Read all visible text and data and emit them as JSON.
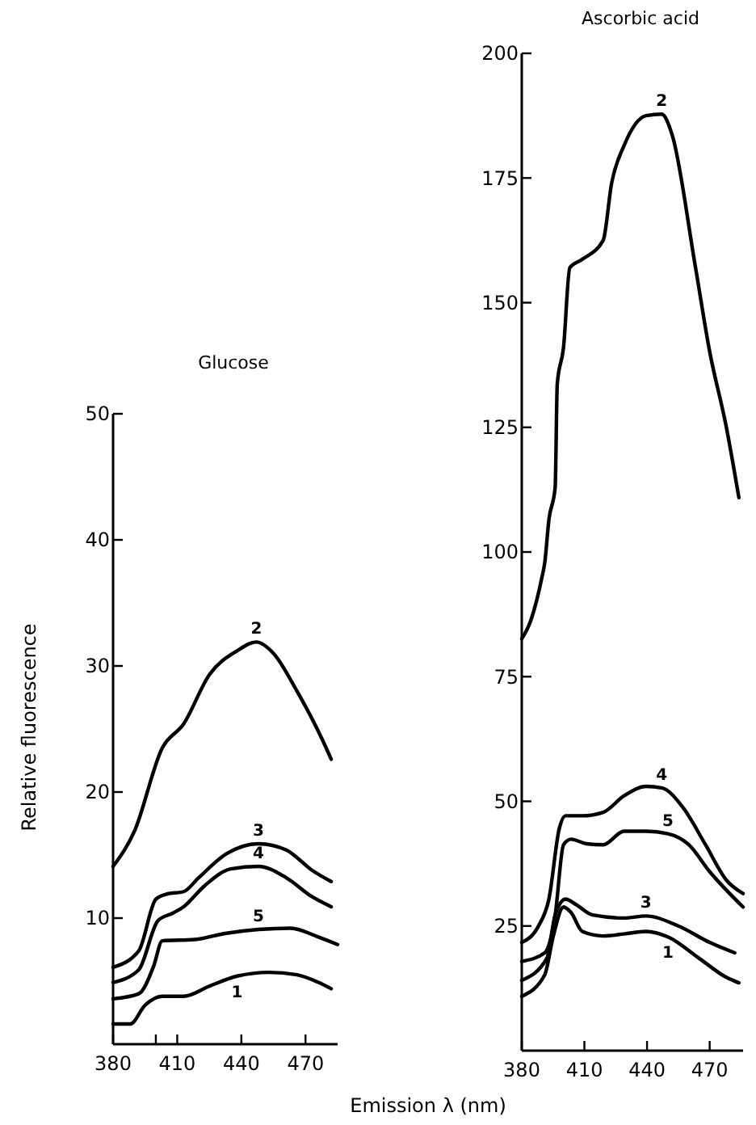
{
  "chart_data": [
    {
      "type": "line",
      "title": "Glucose",
      "ylabel": "Relative fluorescence",
      "xlim": [
        380,
        485
      ],
      "xticks": [
        380,
        {
          "value": 400,
          "label": null
        },
        410,
        440,
        470
      ],
      "ylim": [
        0,
        50
      ],
      "yticks": [
        10,
        20,
        30,
        40,
        50
      ],
      "grid": false,
      "line_style": "solid",
      "series": [
        {
          "name": "2",
          "color": "#000000",
          "x": [
            380,
            390,
            403,
            413,
            425,
            438,
            447,
            455,
            466,
            478,
            482
          ],
          "values": [
            14.1,
            16.9,
            23.5,
            25.4,
            29.3,
            31.2,
            31.9,
            31.0,
            28.0,
            24.1,
            22.6
          ]
        },
        {
          "name": "3",
          "color": "#000000",
          "x": [
            380,
            392,
            400,
            405,
            413,
            420,
            433,
            448,
            461,
            473,
            482
          ],
          "values": [
            6.1,
            7.4,
            11.5,
            11.9,
            12.1,
            13.2,
            15.1,
            15.9,
            15.4,
            13.8,
            12.9
          ]
        },
        {
          "name": "4",
          "color": "#000000",
          "x": [
            380,
            392,
            401,
            408,
            413,
            423,
            435,
            448,
            461,
            473,
            482
          ],
          "values": [
            4.9,
            5.9,
            9.8,
            10.4,
            10.9,
            12.6,
            13.9,
            14.1,
            13.2,
            11.7,
            10.9
          ]
        },
        {
          "name": "5",
          "color": "#000000",
          "x": [
            380,
            392,
            399,
            403,
            418,
            433,
            448,
            463,
            476,
            485
          ],
          "values": [
            3.6,
            4.0,
            6.2,
            8.2,
            8.3,
            8.8,
            9.1,
            9.2,
            8.5,
            7.9
          ]
        },
        {
          "name": "1",
          "color": "#000000",
          "x": [
            380,
            388,
            395,
            403,
            413,
            425,
            438,
            453,
            466,
            476,
            482
          ],
          "values": [
            1.6,
            1.6,
            3.1,
            3.8,
            3.8,
            4.6,
            5.4,
            5.7,
            5.5,
            4.9,
            4.4
          ]
        }
      ]
    },
    {
      "type": "line",
      "title": "Ascorbic acid",
      "xlabel": "Emission λ (nm)",
      "xlim": [
        380,
        486
      ],
      "xticks": [
        380,
        410,
        440,
        470
      ],
      "ylim": [
        0,
        200
      ],
      "yticks": [
        25,
        50,
        75,
        100,
        125,
        150,
        175,
        200
      ],
      "grid": false,
      "line_style": "solid",
      "series": [
        {
          "name": "2",
          "color": "#000000",
          "x": [
            380,
            384,
            389.5,
            391,
            393,
            396,
            397,
            400,
            403,
            409,
            419,
            423,
            429,
            439.5,
            447,
            452,
            463,
            470,
            478,
            484
          ],
          "values": [
            82.6,
            85.9,
            94.6,
            97.8,
            106.5,
            113,
            133.7,
            141,
            157,
            158.7,
            162.5,
            173.9,
            181.5,
            187.5,
            187.8,
            183.7,
            157.6,
            140.2,
            125,
            110.9
          ]
        },
        {
          "name": "4",
          "color": "#000000",
          "x": [
            380,
            388,
            393,
            398,
            401,
            409,
            419,
            429,
            439.5,
            447,
            457,
            468,
            478,
            486
          ],
          "values": [
            21.7,
            25,
            30.4,
            44.6,
            47.1,
            47.1,
            47.8,
            51.1,
            53,
            52.7,
            48.9,
            41.3,
            34.2,
            31.5
          ]
        },
        {
          "name": "5",
          "color": "#000000",
          "x": [
            380,
            391,
            396,
            400,
            403.6,
            411,
            419,
            429,
            439.5,
            450,
            460,
            470,
            486
          ],
          "values": [
            17.9,
            19.6,
            27.2,
            41.3,
            42.4,
            41.5,
            41.3,
            44,
            44,
            43.5,
            41.3,
            35.9,
            28.8
          ]
        },
        {
          "name": "3",
          "color": "#000000",
          "x": [
            380,
            392,
            396,
            401,
            406,
            414,
            429,
            439.5,
            455,
            470,
            482
          ],
          "values": [
            14.1,
            18.5,
            27.2,
            30.4,
            29.3,
            27.2,
            26.6,
            27,
            25,
            21.7,
            19.6
          ]
        },
        {
          "name": "1",
          "color": "#000000",
          "x": [
            380,
            391,
            395,
            400,
            403.6,
            409,
            419,
            429,
            439.5,
            450,
            465,
            478,
            484
          ],
          "values": [
            10.9,
            15.2,
            22.8,
            28.8,
            27.7,
            23.9,
            23,
            23.4,
            23.9,
            22.8,
            18.5,
            14.7,
            13.6
          ]
        }
      ]
    }
  ]
}
